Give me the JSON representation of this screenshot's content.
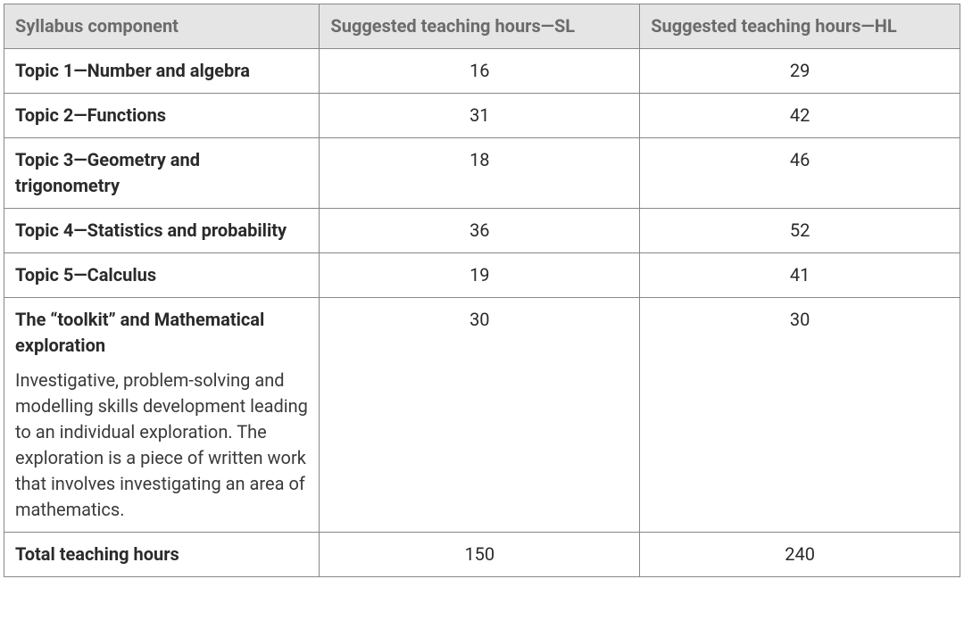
{
  "table": {
    "columns": [
      "Syllabus component",
      "Suggested teaching hours—SL",
      "Suggested teaching hours—HL"
    ],
    "rows": [
      {
        "title": "Topic 1—Number and algebra",
        "desc": "",
        "sl": "16",
        "hl": "29"
      },
      {
        "title": "Topic 2—Functions",
        "desc": "",
        "sl": "31",
        "hl": "42"
      },
      {
        "title": "Topic 3—Geometry and trigonometry",
        "desc": "",
        "sl": "18",
        "hl": "46"
      },
      {
        "title": "Topic 4—Statistics and probability",
        "desc": "",
        "sl": "36",
        "hl": "52"
      },
      {
        "title": "Topic 5—Calculus",
        "desc": "",
        "sl": "19",
        "hl": "41"
      },
      {
        "title": "The “toolkit” and Mathematical exploration",
        "desc": "Investigative, problem-solving and modelling skills development leading to an individual exploration. The exploration is a piece of written work that involves investigating an area of mathematics.",
        "sl": "30",
        "hl": "30"
      },
      {
        "title": "Total teaching hours",
        "desc": "",
        "sl": "150",
        "hl": "240"
      }
    ],
    "colors": {
      "header_bg": "#e5e5e5",
      "header_text": "#6b6b6b",
      "border": "#888888",
      "body_text": "#2a2a2a",
      "background": "#ffffff"
    },
    "font_sizes": {
      "cell": 20
    }
  }
}
